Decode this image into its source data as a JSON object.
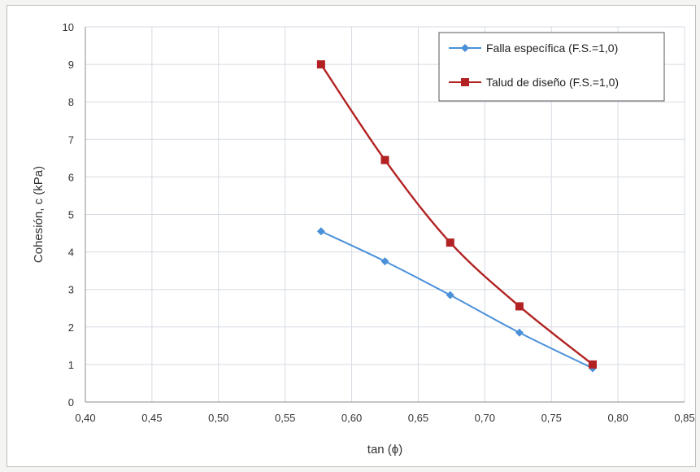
{
  "chart_data": {
    "type": "line",
    "xlabel": "tan (ϕ)",
    "ylabel": "Cohesión, c (kPa)",
    "xlim": [
      0.4,
      0.85
    ],
    "ylim": [
      0,
      10
    ],
    "x_ticks": [
      "0,40",
      "0,45",
      "0,50",
      "0,55",
      "0,60",
      "0,65",
      "0,70",
      "0,75",
      "0,80",
      "0,85"
    ],
    "y_ticks": [
      "0",
      "1",
      "2",
      "3",
      "4",
      "5",
      "6",
      "7",
      "8",
      "9",
      "10"
    ],
    "grid": true,
    "legend_position": "top-right",
    "series": [
      {
        "name": "Falla específica (F.S.=1,0)",
        "color": "#4a90d9",
        "marker": "diamond",
        "x": [
          0.577,
          0.625,
          0.674,
          0.726,
          0.781
        ],
        "y": [
          4.55,
          3.75,
          2.85,
          1.85,
          0.9
        ]
      },
      {
        "name": "Talud de diseño (F.S.=1,0)",
        "color": "#b22222",
        "marker": "square",
        "x": [
          0.577,
          0.625,
          0.674,
          0.726,
          0.781
        ],
        "y": [
          9.0,
          6.45,
          4.25,
          2.55,
          1.0
        ]
      }
    ]
  }
}
